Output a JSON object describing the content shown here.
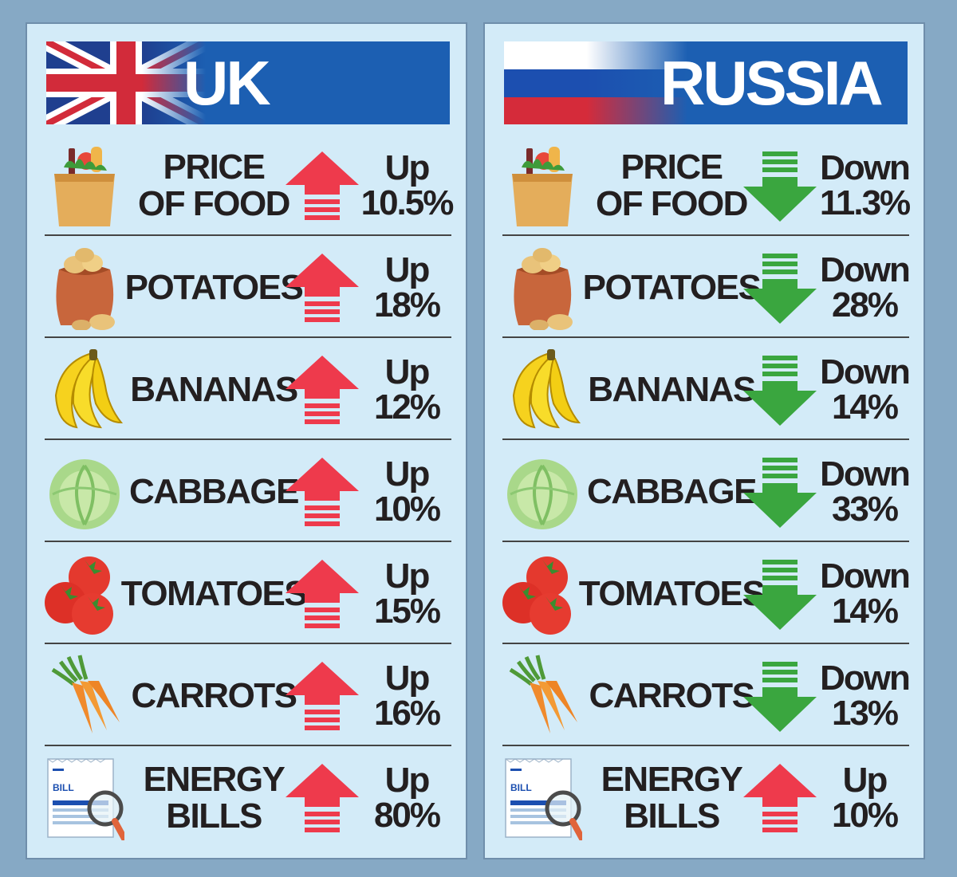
{
  "panels": [
    {
      "id": "uk",
      "title": "UK",
      "flag": "uk-flag",
      "rows": [
        {
          "label": "PRICE\nOF FOOD",
          "icon": "grocery-bag-icon",
          "direction": "up",
          "change_word": "Up",
          "change_value": "10.5%"
        },
        {
          "label": "POTATOES",
          "icon": "potato-sack-icon",
          "direction": "up",
          "change_word": "Up",
          "change_value": "18%"
        },
        {
          "label": "BANANAS",
          "icon": "banana-icon",
          "direction": "up",
          "change_word": "Up",
          "change_value": "12%"
        },
        {
          "label": "CABBAGE",
          "icon": "cabbage-icon",
          "direction": "up",
          "change_word": "Up",
          "change_value": "10%"
        },
        {
          "label": "TOMATOES",
          "icon": "tomato-icon",
          "direction": "up",
          "change_word": "Up",
          "change_value": "15%"
        },
        {
          "label": "CARROTS",
          "icon": "carrot-icon",
          "direction": "up",
          "change_word": "Up",
          "change_value": "16%"
        },
        {
          "label": "ENERGY\nBILLS",
          "icon": "bill-magnifier-icon",
          "bill_text": "BILL",
          "direction": "up",
          "change_word": "Up",
          "change_value": "80%"
        }
      ]
    },
    {
      "id": "ru",
      "title": "RUSSIA",
      "flag": "russia-flag",
      "rows": [
        {
          "label": "PRICE\nOF FOOD",
          "icon": "grocery-bag-icon",
          "direction": "down",
          "change_word": "Down",
          "change_value": "11.3%"
        },
        {
          "label": "POTATOES",
          "icon": "potato-sack-icon",
          "direction": "down",
          "change_word": "Down",
          "change_value": "28%"
        },
        {
          "label": "BANANAS",
          "icon": "banana-icon",
          "direction": "down",
          "change_word": "Down",
          "change_value": "14%"
        },
        {
          "label": "CABBAGE",
          "icon": "cabbage-icon",
          "direction": "down",
          "change_word": "Down",
          "change_value": "33%"
        },
        {
          "label": "TOMATOES",
          "icon": "tomato-icon",
          "direction": "down",
          "change_word": "Down",
          "change_value": "14%"
        },
        {
          "label": "CARROTS",
          "icon": "carrot-icon",
          "direction": "down",
          "change_word": "Down",
          "change_value": "13%"
        },
        {
          "label": "ENERGY\nBILLS",
          "icon": "bill-magnifier-icon",
          "bill_text": "BILL",
          "direction": "up",
          "change_word": "Up",
          "change_value": "10%"
        }
      ]
    }
  ],
  "colors": {
    "up_arrow": "#ee3a4c",
    "down_arrow": "#3aa63f",
    "header_blue": "#1c5fb2",
    "panel_bg": "#d3ebf8",
    "page_bg": "#86a9c5"
  }
}
